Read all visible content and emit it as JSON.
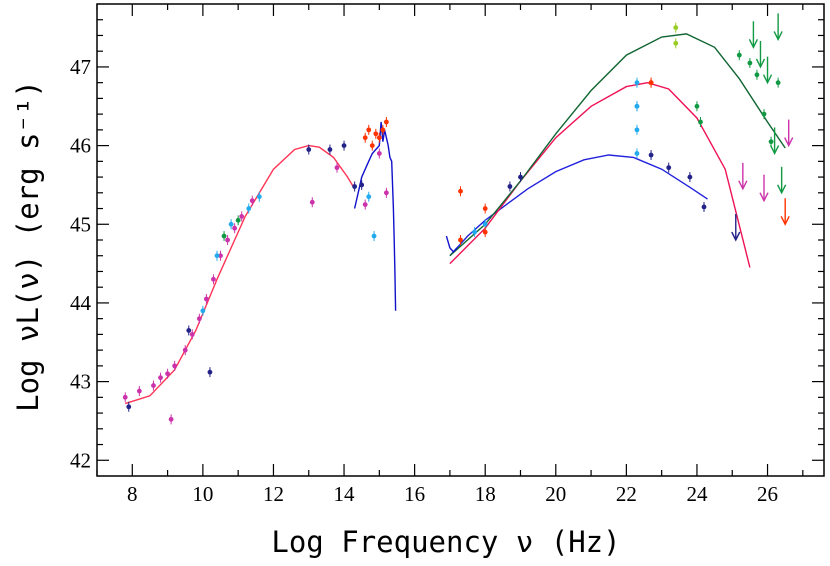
{
  "chart_data": {
    "type": "scatter",
    "title": "",
    "xlabel": "Log Frequency ν (Hz)",
    "ylabel": "Log νL(ν) (erg s⁻¹)",
    "xlim": [
      7,
      27.6
    ],
    "ylim": [
      41.8,
      47.8
    ],
    "xticks": [
      8,
      10,
      12,
      14,
      16,
      18,
      20,
      22,
      24,
      26
    ],
    "yticks": [
      42,
      43,
      44,
      45,
      46,
      47
    ],
    "grid": false,
    "legend": "none",
    "colors": {
      "sync_model": "#ff3355",
      "ic_low": "#2222dd",
      "ic_mid": "#ee1155",
      "ic_high": "#116633",
      "optical_spectrum": "#1111cc",
      "cyan": "#22aaee",
      "orange": "#ff3300",
      "magenta": "#cc33aa",
      "green": "#119944",
      "navy": "#222288",
      "yellowgreen": "#99cc22"
    },
    "series": [
      {
        "color": "#ff3355",
        "style": "line",
        "x": [
          7.8,
          8.5,
          9.2,
          9.8,
          10.4,
          11.2,
          12.0,
          12.6,
          13.0,
          13.3,
          13.7,
          14.1,
          14.3
        ],
        "y": [
          42.72,
          42.82,
          43.15,
          43.65,
          44.3,
          45.1,
          45.7,
          45.95,
          46.0,
          45.98,
          45.85,
          45.6,
          45.45
        ]
      },
      {
        "color": "#2222dd",
        "style": "line",
        "x": [
          17.0,
          17.5,
          18.0,
          18.6,
          19.2,
          20.0,
          20.8,
          21.5,
          22.2,
          23.0,
          23.8,
          24.3
        ],
        "y": [
          44.6,
          44.85,
          45.05,
          45.25,
          45.45,
          45.67,
          45.82,
          45.88,
          45.85,
          45.7,
          45.47,
          45.32
        ]
      },
      {
        "color": "#ee1155",
        "style": "line",
        "x": [
          17.0,
          18.0,
          19.0,
          20.0,
          21.0,
          22.0,
          22.6,
          23.2,
          24.0,
          24.8,
          25.5
        ],
        "y": [
          44.5,
          44.95,
          45.55,
          46.1,
          46.5,
          46.75,
          46.8,
          46.72,
          46.35,
          45.7,
          44.45
        ]
      },
      {
        "color": "#116633",
        "style": "line",
        "x": [
          17.0,
          18.0,
          19.0,
          20.0,
          21.0,
          22.0,
          23.0,
          23.7,
          24.5,
          25.2,
          26.0,
          26.5
        ],
        "y": [
          44.6,
          45.0,
          45.55,
          46.15,
          46.7,
          47.15,
          47.38,
          47.42,
          47.25,
          46.85,
          46.3,
          45.97
        ]
      },
      {
        "color": "#1111cc",
        "style": "line",
        "x": [
          14.3,
          14.4,
          14.5,
          14.6,
          14.7,
          14.8,
          14.9,
          15.0,
          15.05,
          15.1,
          15.15,
          15.2,
          15.25,
          15.3,
          15.35,
          15.4,
          15.42,
          15.44,
          15.46
        ],
        "y": [
          45.2,
          45.4,
          45.6,
          45.7,
          45.8,
          45.9,
          45.95,
          46.0,
          46.3,
          46.05,
          46.2,
          46.1,
          46.0,
          45.85,
          45.8,
          45.2,
          44.8,
          44.4,
          43.9
        ]
      },
      {
        "color": "#1111cc",
        "style": "line",
        "x": [
          16.9,
          17.0,
          17.1,
          17.2
        ],
        "y": [
          44.85,
          44.7,
          44.65,
          44.7
        ]
      },
      {
        "color": "#cc33aa",
        "style": "points",
        "x": [
          7.8,
          8.2,
          8.6,
          8.8,
          9.0,
          9.2,
          9.1,
          9.5,
          9.7,
          9.9,
          10.1,
          10.3,
          10.5,
          10.7,
          10.9,
          11.1,
          11.4,
          13.1,
          13.8,
          14.6,
          15.2,
          15.0
        ],
        "y": [
          42.8,
          42.88,
          42.95,
          43.05,
          43.1,
          43.2,
          42.52,
          43.4,
          43.6,
          43.8,
          44.05,
          44.3,
          44.6,
          44.8,
          44.95,
          45.1,
          45.3,
          45.28,
          45.72,
          45.25,
          45.4,
          45.9
        ]
      },
      {
        "color": "#22aaee",
        "style": "points",
        "x": [
          10.0,
          10.4,
          10.8,
          11.3,
          11.6,
          14.7,
          14.85,
          17.7,
          18.0,
          22.3,
          22.3,
          22.3,
          22.3,
          22.3
        ],
        "y": [
          43.9,
          44.6,
          45.0,
          45.2,
          45.35,
          45.35,
          44.85,
          44.9,
          45.0,
          46.8,
          46.5,
          46.2,
          45.9,
          46.5
        ]
      },
      {
        "color": "#ff3300",
        "style": "points",
        "x": [
          14.6,
          14.7,
          14.8,
          14.9,
          15.0,
          15.1,
          15.2,
          17.3,
          17.3,
          18.0,
          18.0,
          22.7,
          22.7
        ],
        "y": [
          46.1,
          46.2,
          46.0,
          46.15,
          46.1,
          46.2,
          46.3,
          45.42,
          44.8,
          45.2,
          44.9,
          46.8,
          46.8
        ]
      },
      {
        "color": "#222288",
        "style": "points",
        "x": [
          7.9,
          9.6,
          10.2,
          13.0,
          13.6,
          14.0,
          14.3,
          14.5,
          18.7,
          19.0,
          22.7,
          23.2,
          23.8,
          24.2
        ],
        "y": [
          42.68,
          43.65,
          43.12,
          45.95,
          45.95,
          46.0,
          45.48,
          45.5,
          45.48,
          45.6,
          45.88,
          45.72,
          45.6,
          45.22
        ]
      },
      {
        "color": "#119944",
        "style": "points",
        "x": [
          10.6,
          11.0,
          24.0,
          24.1,
          25.2,
          25.5,
          25.7,
          25.9,
          26.1,
          26.3
        ],
        "y": [
          44.85,
          45.05,
          46.5,
          46.3,
          47.15,
          47.05,
          46.9,
          46.4,
          46.05,
          46.8
        ]
      },
      {
        "color": "#99cc22",
        "style": "points",
        "x": [
          23.4,
          23.4
        ],
        "y": [
          47.5,
          47.3
        ]
      },
      {
        "color": "#222288",
        "style": "upper-limits",
        "x": [
          25.1
        ],
        "y": [
          44.8
        ]
      },
      {
        "color": "#cc33aa",
        "style": "upper-limits",
        "x": [
          25.9,
          26.6,
          25.3
        ],
        "y": [
          45.3,
          46.0,
          45.45
        ]
      },
      {
        "color": "#119944",
        "style": "upper-limits",
        "x": [
          25.6,
          26.0,
          26.2,
          26.4,
          25.8,
          26.3
        ],
        "y": [
          47.25,
          46.8,
          45.9,
          45.4,
          47.0,
          47.35
        ]
      },
      {
        "color": "#ff3300",
        "style": "upper-limits",
        "x": [
          26.5
        ],
        "y": [
          45.0
        ]
      }
    ]
  }
}
